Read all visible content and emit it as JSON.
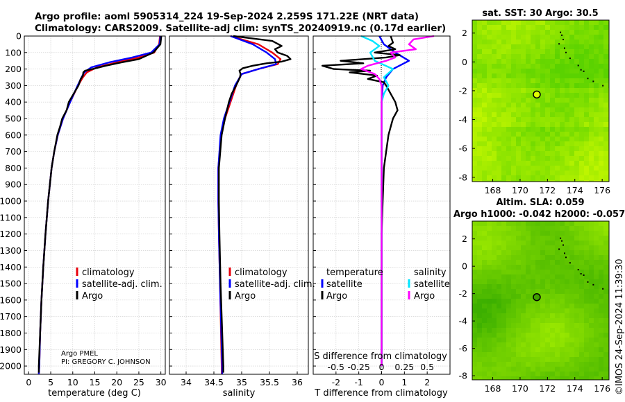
{
  "title_line1": "Argo profile: aoml 5905314_224 19-Sep-2024 2.259S 171.22E (NRT data)",
  "title_line2": "Climatology: CARS2009. Satellite-adj clim: synTS_20240919.nc (0.17d earlier)",
  "credit": {
    "line1": "Argo PMEL",
    "line2": "PI: GREGORY C. JOHNSON",
    "copyright": "©IMOS 24-Sep-2024 11:39:30"
  },
  "colors": {
    "climatology": "#e8000b",
    "satellite": "#0000ff",
    "argo": "#000000",
    "sat_temp_diff": "#0000ff",
    "sat_sal_diff": "#00e5ff",
    "argo_sal_diff": "#ff00ff",
    "map_green": "#52d600"
  },
  "chart_data": [
    {
      "id": "temperature",
      "type": "line",
      "xlabel": "temperature (deg C)",
      "xlim": [
        -1,
        31
      ],
      "xticks": [
        0,
        5,
        10,
        15,
        20,
        25,
        30
      ],
      "ylim": [
        2050,
        0
      ],
      "yticks": [
        0,
        100,
        200,
        300,
        400,
        500,
        600,
        700,
        800,
        900,
        1000,
        1100,
        1200,
        1300,
        1400,
        1500,
        1600,
        1700,
        1800,
        1900,
        2000
      ],
      "legend": [
        "climatology",
        "satellite-adj. clim.",
        "Argo"
      ],
      "legend_position": "lower-center",
      "series": [
        {
          "name": "climatology",
          "depth": [
            0,
            50,
            100,
            130,
            160,
            190,
            220,
            250,
            300,
            400,
            500,
            600,
            700,
            800,
            900,
            1000,
            1200,
            1400,
            1600,
            1800,
            2000,
            2050
          ],
          "values": [
            29.8,
            29.6,
            28.5,
            25,
            20,
            15.5,
            13.2,
            12.3,
            11.2,
            9.4,
            7.8,
            6.6,
            5.8,
            5.2,
            4.8,
            4.4,
            3.8,
            3.3,
            2.9,
            2.6,
            2.4,
            2.3
          ]
        },
        {
          "name": "satellite-adj. clim.",
          "depth": [
            0,
            50,
            100,
            130,
            160,
            190,
            220,
            250,
            300,
            400,
            500,
            600,
            700,
            800,
            900,
            1000,
            1200,
            1400,
            1600,
            1800,
            2000,
            2050
          ],
          "values": [
            29.9,
            29.7,
            27.8,
            23.5,
            18.2,
            14.2,
            12.6,
            12,
            11.1,
            9.4,
            7.8,
            6.6,
            5.8,
            5.2,
            4.8,
            4.4,
            3.8,
            3.3,
            2.9,
            2.6,
            2.4,
            2.3
          ]
        },
        {
          "name": "Argo",
          "depth": [
            0,
            50,
            100,
            140,
            160,
            180,
            200,
            210,
            220,
            240,
            260,
            300,
            350,
            400,
            450,
            500,
            550,
            600,
            700,
            800,
            900,
            1000,
            1200,
            1400,
            1600,
            1800,
            2000,
            2040
          ],
          "values": [
            30.1,
            29.9,
            28.3,
            25,
            21,
            17.5,
            14.5,
            12.8,
            12.4,
            12.3,
            11.8,
            11.3,
            10.2,
            9.1,
            8.6,
            7.6,
            7.1,
            6.5,
            5.8,
            5.2,
            4.8,
            4.4,
            3.8,
            3.3,
            2.9,
            2.6,
            2.3,
            2.3
          ]
        }
      ]
    },
    {
      "id": "salinity",
      "type": "line",
      "xlabel": "salinity",
      "xlim": [
        33.7,
        36.2
      ],
      "xticks": [
        34,
        34.5,
        35,
        35.5,
        36
      ],
      "xticklabels": [
        "34",
        "34.5",
        "35",
        "35.5",
        "36"
      ],
      "ylim": [
        2050,
        0
      ],
      "legend": [
        "climatology",
        "satellite-adj. clim.",
        "Argo"
      ],
      "legend_position": "lower-center",
      "series": [
        {
          "name": "climatology",
          "depth": [
            0,
            50,
            100,
            140,
            170,
            200,
            230,
            260,
            300,
            400,
            500,
            600,
            800,
            1000,
            1200,
            1500,
            2000,
            2050
          ],
          "values": [
            34.8,
            35.3,
            35.55,
            35.7,
            35.65,
            35.3,
            35.0,
            34.95,
            34.9,
            34.8,
            34.7,
            34.63,
            34.58,
            34.58,
            34.59,
            34.61,
            34.64,
            34.64
          ]
        },
        {
          "name": "satellite-adj. clim.",
          "depth": [
            0,
            50,
            100,
            140,
            170,
            200,
            230,
            260,
            300,
            400,
            500,
            600,
            800,
            1000,
            1200,
            1500,
            2000,
            2050
          ],
          "values": [
            34.8,
            35.2,
            35.45,
            35.6,
            35.62,
            35.3,
            35.0,
            34.95,
            34.88,
            34.78,
            34.68,
            34.62,
            34.58,
            34.58,
            34.59,
            34.61,
            34.65,
            34.65
          ]
        },
        {
          "name": "Argo",
          "depth": [
            0,
            30,
            60,
            80,
            100,
            120,
            140,
            155,
            165,
            180,
            195,
            210,
            230,
            250,
            300,
            350,
            400,
            500,
            600,
            800,
            1000,
            1200,
            1500,
            1800,
            2000,
            2040
          ],
          "values": [
            34.85,
            35.55,
            35.72,
            35.6,
            35.65,
            35.82,
            35.88,
            35.72,
            35.45,
            35.2,
            35.02,
            34.96,
            34.98,
            34.97,
            34.9,
            34.82,
            34.77,
            34.7,
            34.64,
            34.59,
            34.59,
            34.6,
            34.62,
            34.65,
            34.67,
            34.67
          ]
        }
      ]
    },
    {
      "id": "difference",
      "type": "line",
      "xlabel": "T difference from climatology",
      "top_xlabel": "S difference from climatology",
      "xlim": [
        -3,
        3
      ],
      "xticks": [
        -2,
        -1,
        0,
        1,
        2
      ],
      "top_ticklabels": [
        "-0.5",
        "-0.25",
        "0",
        "0.25",
        "0.5"
      ],
      "top_tick_positions": [
        -2,
        -1,
        0,
        1,
        2
      ],
      "ylim": [
        2050,
        0
      ],
      "legend_groups": {
        "temperature": "temperature",
        "salinity": "salinity",
        "satellite": "satellite",
        "argo": "Argo"
      },
      "series": [
        {
          "name": "temperature satellite",
          "depth": [
            0,
            50,
            100,
            150,
            200,
            250,
            300,
            400,
            600,
            800,
            1000,
            1500,
            2000
          ],
          "values": [
            -0.1,
            0.1,
            0.6,
            1.2,
            0.5,
            0.2,
            0.05,
            0,
            0,
            0,
            0,
            0,
            0
          ]
        },
        {
          "name": "temperature Argo",
          "depth": [
            0,
            40,
            60,
            80,
            100,
            115,
            130,
            150,
            165,
            180,
            200,
            210,
            220,
            240,
            260,
            280,
            300,
            350,
            400,
            450,
            500,
            550,
            600,
            700,
            800,
            1000,
            1200,
            1500,
            2000
          ],
          "values": [
            0.4,
            0.5,
            0.3,
            0.6,
            -0.3,
            0.8,
            0.2,
            -1.8,
            -0.8,
            -2.6,
            -2.1,
            -0.5,
            -1.4,
            -0.2,
            -0.6,
            0.1,
            0.2,
            0.4,
            0.6,
            0.7,
            0.5,
            0.4,
            0.3,
            0.2,
            0.1,
            0.05,
            0,
            0,
            0
          ]
        },
        {
          "name": "salinity satellite",
          "depth": [
            0,
            30,
            60,
            100,
            150,
            200,
            250,
            300,
            350,
            400,
            500,
            700,
            1000,
            1500,
            2000
          ],
          "values": [
            -0.9,
            -0.4,
            -0.1,
            -0.5,
            -0.3,
            0.5,
            0.1,
            0.3,
            0.1,
            0,
            0,
            0,
            0,
            0,
            0
          ]
        },
        {
          "name": "salinity Argo",
          "depth": [
            0,
            20,
            50,
            80,
            100,
            130,
            150,
            180,
            200,
            230,
            260,
            300,
            400,
            500,
            700,
            1000,
            1500,
            2000
          ],
          "values": [
            2.3,
            1.4,
            1.2,
            1.5,
            0.4,
            0.6,
            0.2,
            -0.6,
            -0.9,
            -0.3,
            -0.1,
            0,
            0,
            0,
            0,
            0,
            0,
            0
          ]
        }
      ]
    },
    {
      "id": "sst_map",
      "type": "heatmap",
      "title": "sat. SST: 30 Argo: 30.5",
      "xlim": [
        166.5,
        176.5
      ],
      "ylim": [
        -8.3,
        2.9
      ],
      "xticks": [
        168,
        170,
        172,
        174,
        176
      ],
      "yticks": [
        -8,
        -6,
        -4,
        -2,
        0,
        2
      ],
      "argo_position": {
        "lon": 171.22,
        "lat": -2.259
      }
    },
    {
      "id": "sla_map",
      "type": "heatmap",
      "title": "Altim. SLA: 0.059",
      "subtitle": "Argo h1000: -0.042 h2000: -0.057",
      "xlim": [
        166.5,
        176.5
      ],
      "ylim": [
        -8.3,
        3.3
      ],
      "xticks": [
        168,
        170,
        172,
        174,
        176
      ],
      "yticks": [
        -8,
        -6,
        -4,
        -2,
        0,
        2
      ],
      "argo_position": {
        "lon": 171.22,
        "lat": -2.259
      }
    }
  ]
}
